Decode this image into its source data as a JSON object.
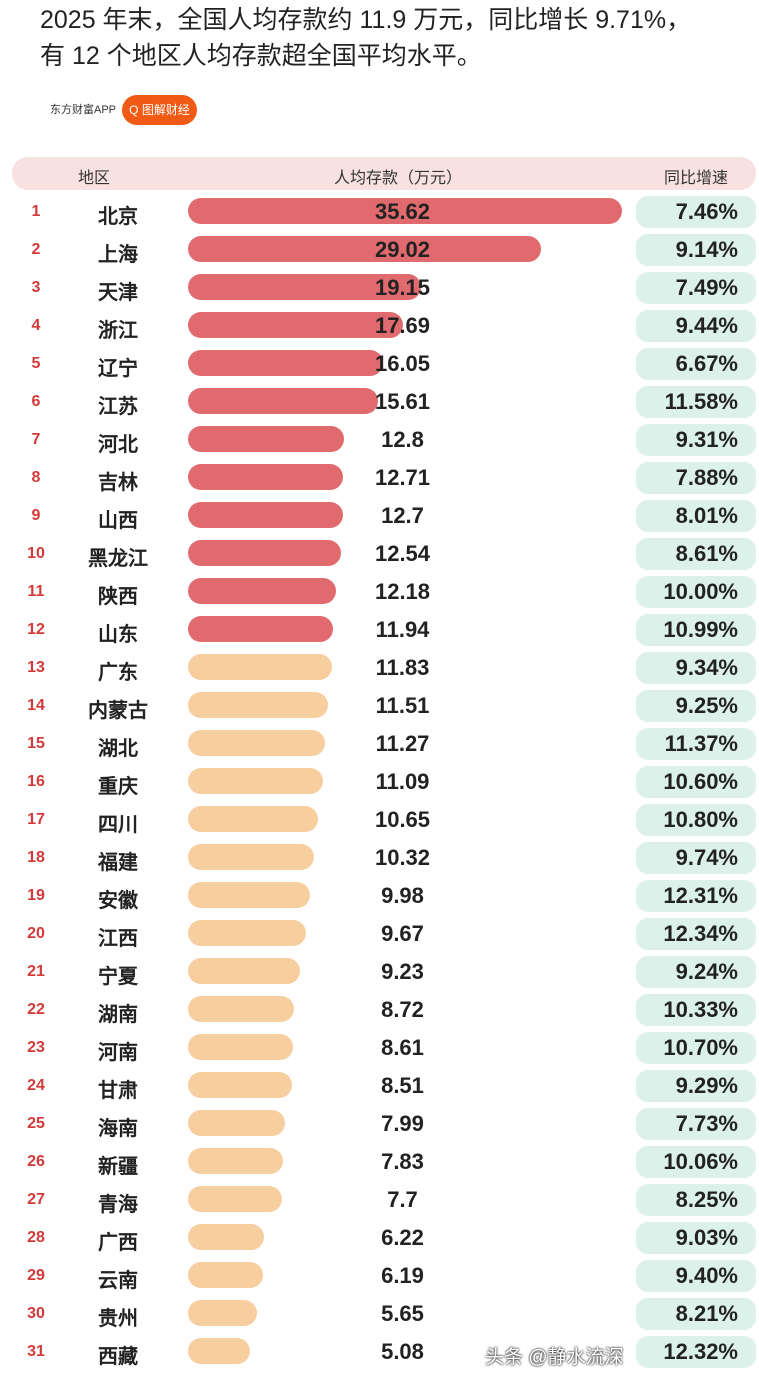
{
  "title_line1": "2025 年末，全国人均存款约 11.9 万元，同比增长 9.71%，",
  "title_line2": "有 12 个地区人均存款超全国平均水平。",
  "brand": "东方财富APP",
  "brand_tag": "Q 图解财经",
  "watermark": "头条 @静水流深",
  "colors": {
    "above_avg_bar": "#e06a6e",
    "below_avg_bar": "#f7cf9f",
    "growth_pill": "#dcf1ea",
    "header": "#f8e1e1"
  },
  "chart_data": {
    "type": "table",
    "headers": {
      "region": "地区",
      "deposit": "人均存款（万元）",
      "growth": "同比增速"
    },
    "rows": [
      {
        "rank": "1",
        "region": "北京",
        "deposit": "35.62",
        "growth": "7.46%"
      },
      {
        "rank": "2",
        "region": "上海",
        "deposit": "29.02",
        "growth": "9.14%"
      },
      {
        "rank": "3",
        "region": "天津",
        "deposit": "19.15",
        "growth": "7.49%"
      },
      {
        "rank": "4",
        "region": "浙江",
        "deposit": "17.69",
        "growth": "9.44%"
      },
      {
        "rank": "5",
        "region": "辽宁",
        "deposit": "16.05",
        "growth": "6.67%"
      },
      {
        "rank": "6",
        "region": "江苏",
        "deposit": "15.61",
        "growth": "11.58%"
      },
      {
        "rank": "7",
        "region": "河北",
        "deposit": "12.8",
        "growth": "9.31%"
      },
      {
        "rank": "8",
        "region": "吉林",
        "deposit": "12.71",
        "growth": "7.88%"
      },
      {
        "rank": "9",
        "region": "山西",
        "deposit": "12.7",
        "growth": "8.01%"
      },
      {
        "rank": "10",
        "region": "黑龙江",
        "deposit": "12.54",
        "growth": "8.61%"
      },
      {
        "rank": "11",
        "region": "陕西",
        "deposit": "12.18",
        "growth": "10.00%"
      },
      {
        "rank": "12",
        "region": "山东",
        "deposit": "11.94",
        "growth": "10.99%"
      },
      {
        "rank": "13",
        "region": "广东",
        "deposit": "11.83",
        "growth": "9.34%"
      },
      {
        "rank": "14",
        "region": "内蒙古",
        "deposit": "11.51",
        "growth": "9.25%"
      },
      {
        "rank": "15",
        "region": "湖北",
        "deposit": "11.27",
        "growth": "11.37%"
      },
      {
        "rank": "16",
        "region": "重庆",
        "deposit": "11.09",
        "growth": "10.60%"
      },
      {
        "rank": "17",
        "region": "四川",
        "deposit": "10.65",
        "growth": "10.80%"
      },
      {
        "rank": "18",
        "region": "福建",
        "deposit": "10.32",
        "growth": "9.74%"
      },
      {
        "rank": "19",
        "region": "安徽",
        "deposit": "9.98",
        "growth": "12.31%"
      },
      {
        "rank": "20",
        "region": "江西",
        "deposit": "9.67",
        "growth": "12.34%"
      },
      {
        "rank": "21",
        "region": "宁夏",
        "deposit": "9.23",
        "growth": "9.24%"
      },
      {
        "rank": "22",
        "region": "湖南",
        "deposit": "8.72",
        "growth": "10.33%"
      },
      {
        "rank": "23",
        "region": "河南",
        "deposit": "8.61",
        "growth": "10.70%"
      },
      {
        "rank": "24",
        "region": "甘肃",
        "deposit": "8.51",
        "growth": "9.29%"
      },
      {
        "rank": "25",
        "region": "海南",
        "deposit": "7.99",
        "growth": "7.73%"
      },
      {
        "rank": "26",
        "region": "新疆",
        "deposit": "7.83",
        "growth": "10.06%"
      },
      {
        "rank": "27",
        "region": "青海",
        "deposit": "7.7",
        "growth": "8.25%"
      },
      {
        "rank": "28",
        "region": "广西",
        "deposit": "6.22",
        "growth": "9.03%"
      },
      {
        "rank": "29",
        "region": "云南",
        "deposit": "6.19",
        "growth": "9.40%"
      },
      {
        "rank": "30",
        "region": "贵州",
        "deposit": "5.65",
        "growth": "8.21%"
      },
      {
        "rank": "31",
        "region": "西藏",
        "deposit": "5.08",
        "growth": "12.32%"
      }
    ],
    "above_average_count": 12
  }
}
